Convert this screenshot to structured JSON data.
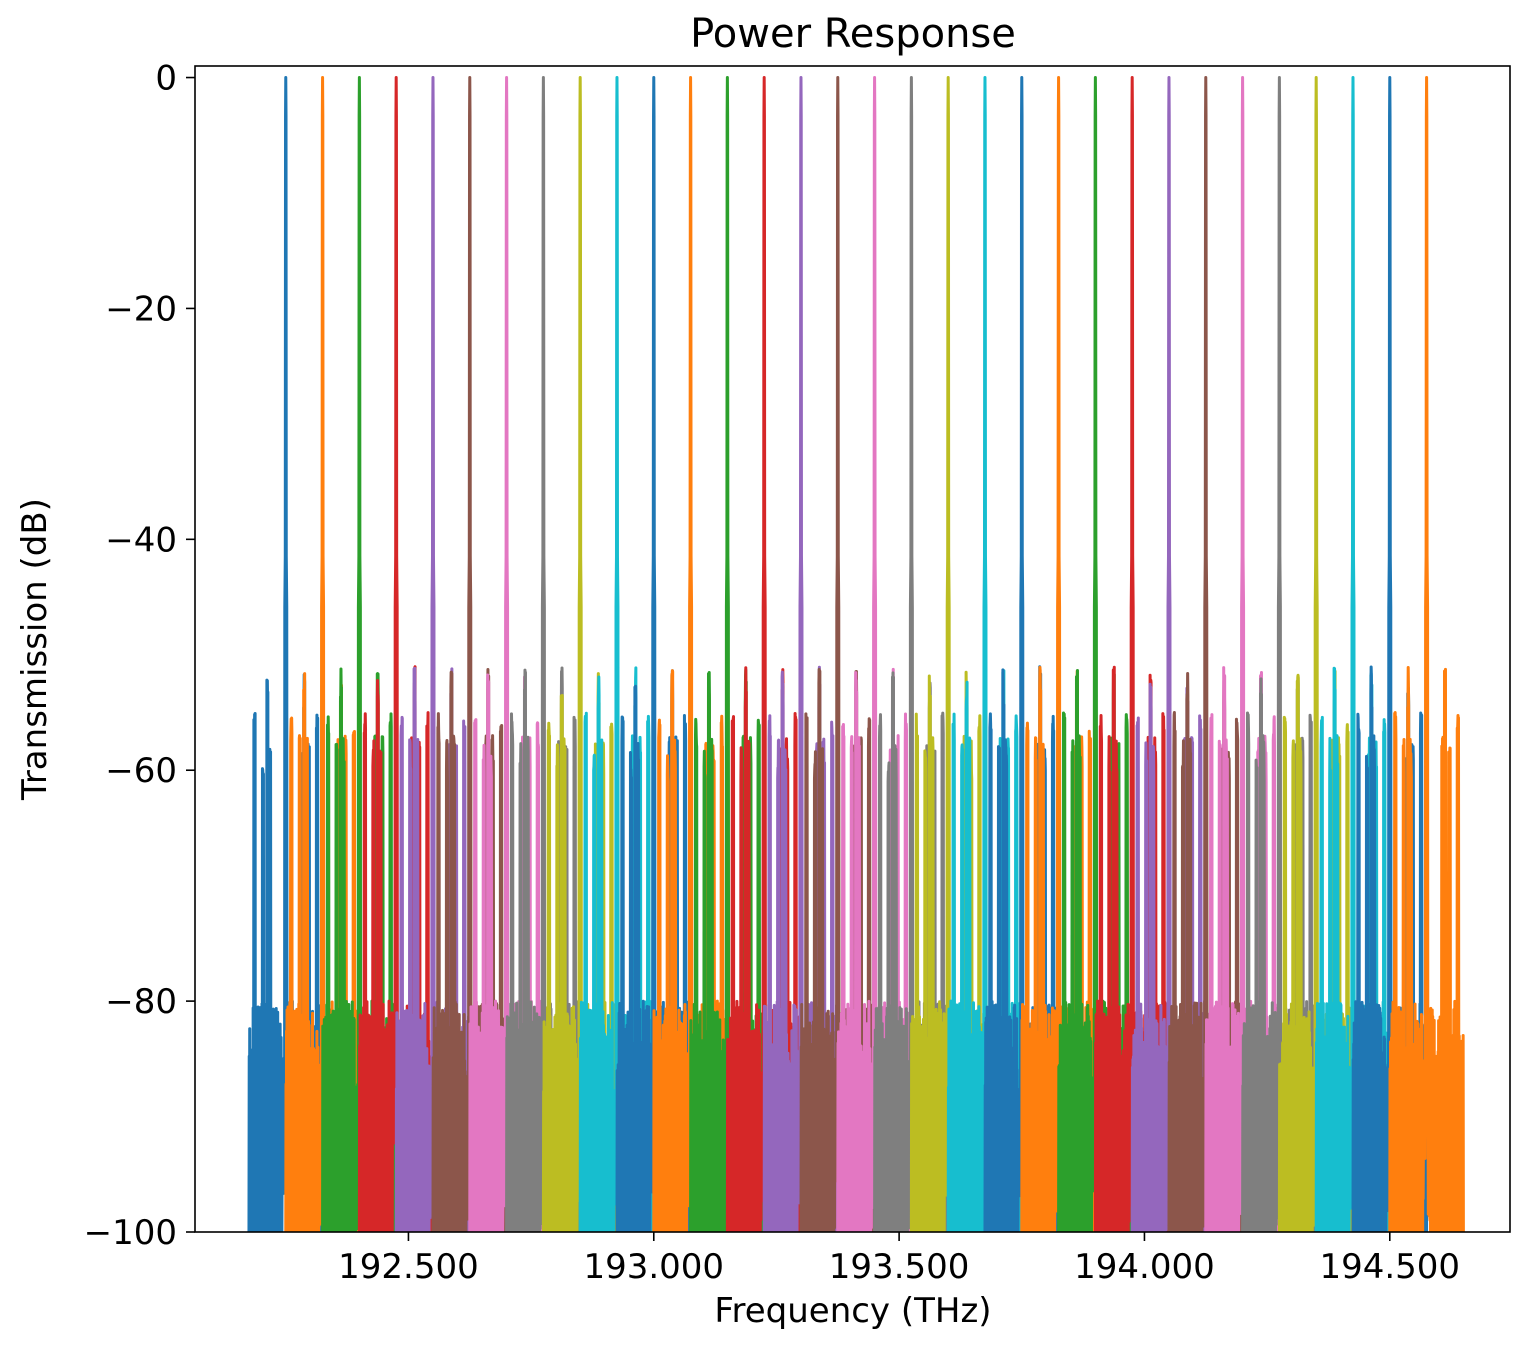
{
  "chart_data": {
    "type": "line",
    "title": "Power Response",
    "xlabel": "Frequency (THz)",
    "ylabel": "Transmission (dB)",
    "xlim": [
      192.065,
      194.745
    ],
    "ylim": [
      -100,
      1
    ],
    "x_ticks": [
      {
        "value": 192.5,
        "label": "192.500"
      },
      {
        "value": 193.0,
        "label": "193.000"
      },
      {
        "value": 193.5,
        "label": "193.500"
      },
      {
        "value": 194.0,
        "label": "194.000"
      },
      {
        "value": 194.5,
        "label": "194.500"
      }
    ],
    "y_ticks": [
      {
        "value": 0,
        "label": "0"
      },
      {
        "value": -20,
        "label": "−20"
      },
      {
        "value": -40,
        "label": "−40"
      },
      {
        "value": -60,
        "label": "−60"
      },
      {
        "value": -80,
        "label": "−80"
      },
      {
        "value": -100,
        "label": "−100"
      }
    ],
    "grid": false,
    "legend": "none",
    "channel_spacing_thz": 0.075,
    "passband_top_db": 0,
    "near_sideband_db": -51,
    "far_sideband_db": -55,
    "noise_floor_db": [
      -100,
      -80
    ],
    "colors": [
      "#1f77b4",
      "#ff7f0e",
      "#2ca02c",
      "#d62728",
      "#9467bd",
      "#8c564b",
      "#e377c2",
      "#7f7f7f",
      "#bcbd22",
      "#17becf"
    ],
    "series_peaks_thz": [
      192.25,
      192.325,
      192.4,
      192.475,
      192.55,
      192.625,
      192.7,
      192.775,
      192.85,
      192.925,
      193.0,
      193.075,
      193.15,
      193.225,
      193.3,
      193.375,
      193.45,
      193.525,
      193.6,
      193.675,
      193.75,
      193.825,
      193.9,
      193.975,
      194.05,
      194.125,
      194.2,
      194.275,
      194.35,
      194.425,
      194.5,
      194.575
    ]
  }
}
